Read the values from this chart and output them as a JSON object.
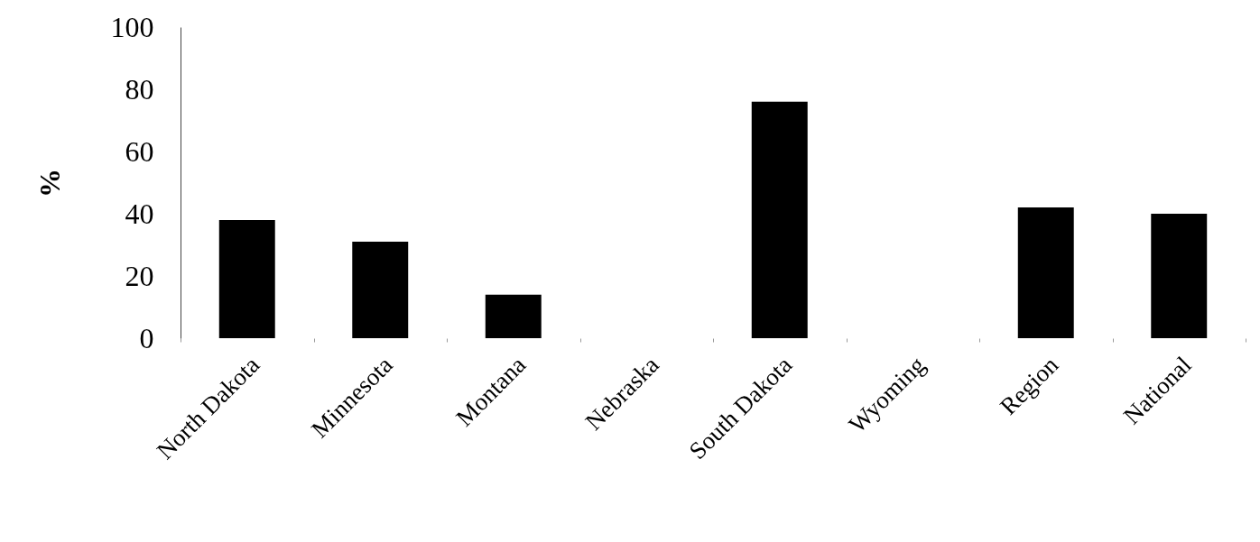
{
  "chart_data": {
    "type": "bar",
    "ylabel": "%",
    "categories": [
      "North Dakota",
      "Minnesota",
      "Montana",
      "Nebraska",
      "South Dakota",
      "Wyoming",
      "Region",
      "National"
    ],
    "values": [
      38,
      31,
      14,
      null,
      76,
      null,
      42,
      40
    ],
    "color": "#000000",
    "ylim": [
      0,
      100
    ],
    "yticks": [
      0,
      20,
      40,
      60,
      80,
      100
    ],
    "grid": false
  }
}
